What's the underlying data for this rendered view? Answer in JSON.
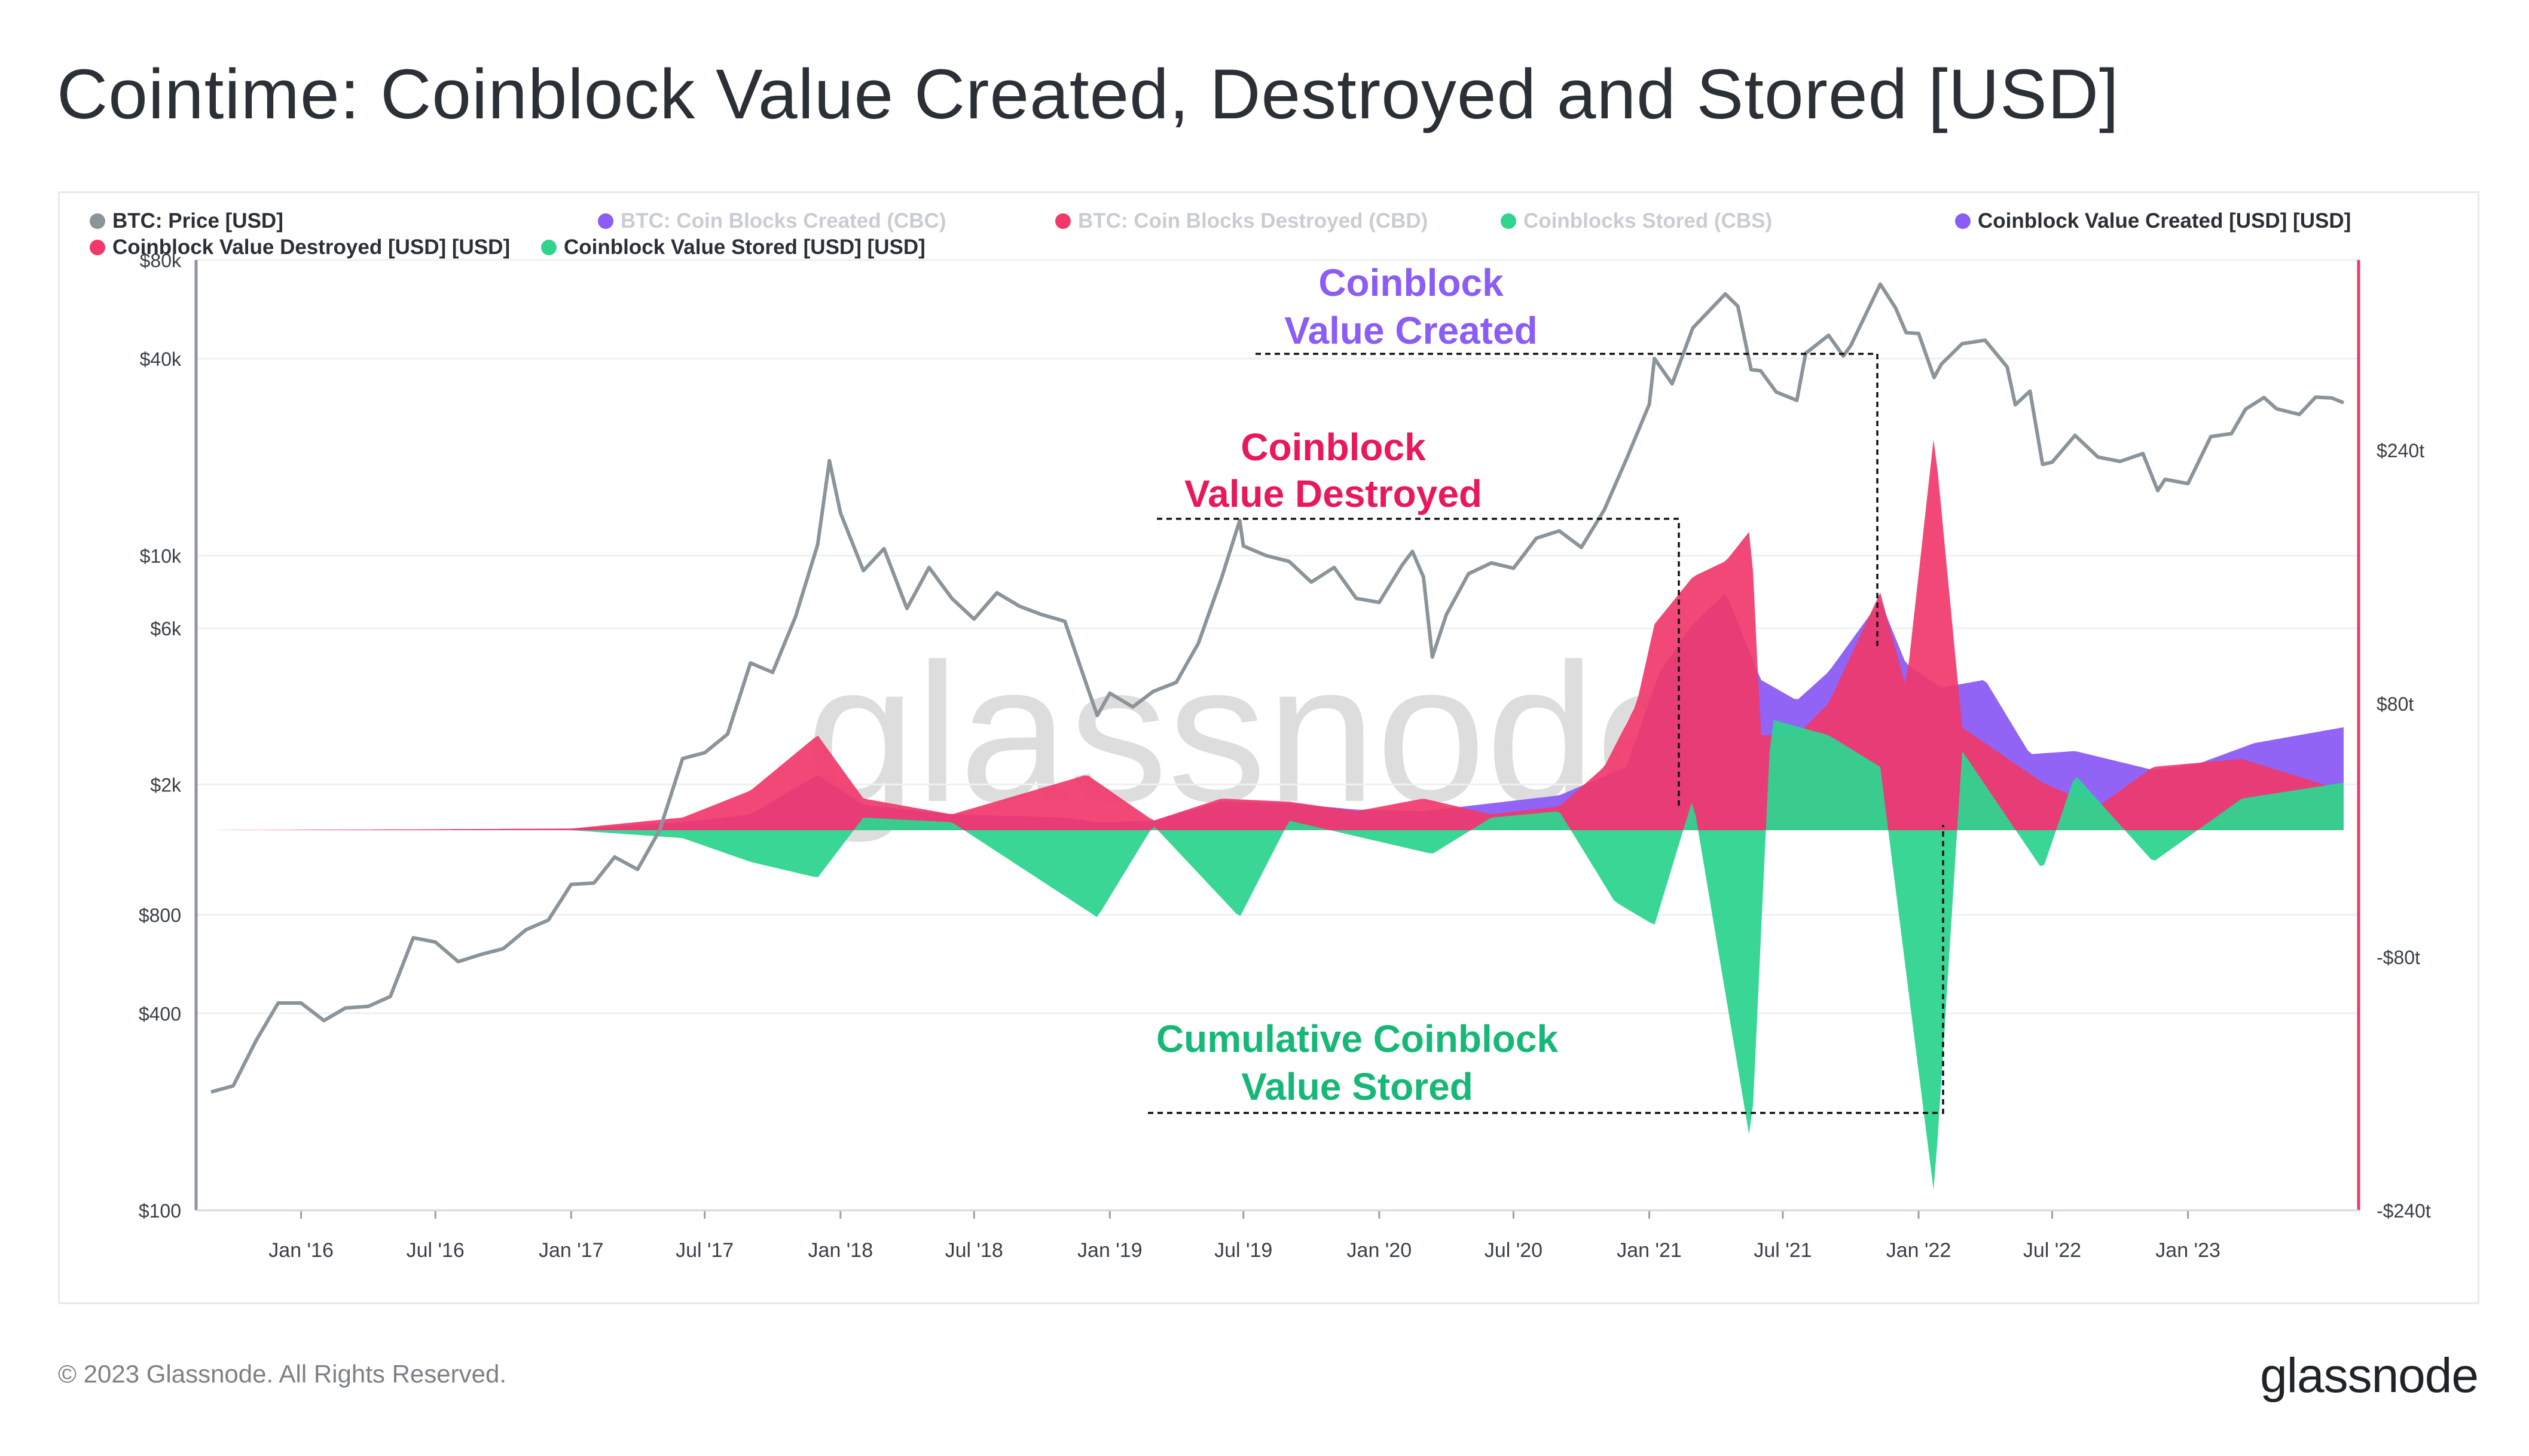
{
  "title": "Cointime: Coinblock Value Created, Destroyed and Stored [USD]",
  "footer": {
    "copyright": "© 2023 Glassnode. All Rights Reserved.",
    "logo_text": "glassnode"
  },
  "watermark": "glassnode",
  "colors": {
    "price": "#8a9499",
    "created": "#8b5cf6",
    "destroyed": "#f0386b",
    "stored": "#2fd48f",
    "axis_right": "#f0386b",
    "annotation_created": "#8b5cf6",
    "annotation_destroyed": "#e8185a",
    "annotation_stored": "#17b877"
  },
  "legend": [
    {
      "label": "BTC: Price [USD]",
      "color": "#8a9499",
      "active": true
    },
    {
      "label": "BTC: Coin Blocks Created (CBC)",
      "color": "#8b5cf6",
      "active": false
    },
    {
      "label": "BTC: Coin Blocks Destroyed (CBD)",
      "color": "#f0386b",
      "active": false
    },
    {
      "label": "Coinblocks Stored (CBS)",
      "color": "#2fd48f",
      "active": false
    },
    {
      "label": "Coinblock Value Created [USD] [USD]",
      "color": "#8b5cf6",
      "active": true
    },
    {
      "label": "Coinblock Value Destroyed [USD] [USD]",
      "color": "#f0386b",
      "active": true
    },
    {
      "label": "Coinblock Value Stored [USD] [USD]",
      "color": "#2fd48f",
      "active": true
    }
  ],
  "annotations": [
    {
      "lines": [
        "Coinblock",
        "Value Created"
      ],
      "color": "#8b5cf6"
    },
    {
      "lines": [
        "Coinblock",
        "Value Destroyed"
      ],
      "color": "#e8185a"
    },
    {
      "lines": [
        "Cumulative Coinblock",
        "Value Stored"
      ],
      "color": "#17b877"
    }
  ],
  "chart_data": {
    "type": "line",
    "x_ticks": [
      "Jan '16",
      "Jul '16",
      "Jan '17",
      "Jul '17",
      "Jan '18",
      "Jul '18",
      "Jan '19",
      "Jul '19",
      "Jan '20",
      "Jul '20",
      "Jan '21",
      "Jul '21",
      "Jan '22",
      "Jul '22",
      "Jan '23"
    ],
    "y_left": {
      "scale": "log",
      "range": [
        100,
        80000
      ],
      "ticks": [
        "$80k",
        "$40k",
        "$10k",
        "$6k",
        "$2k",
        "$800",
        "$400",
        "$100"
      ]
    },
    "y_right": {
      "scale": "linear",
      "range": [
        -240,
        360
      ],
      "unit": "t USD",
      "ticks": [
        "$240t",
        "$80t",
        "-$80t",
        "-$240t"
      ]
    },
    "grid": true,
    "legend_position": "top",
    "series": [
      {
        "name": "BTC: Price [USD]",
        "axis": "left",
        "points": [
          [
            "2015-09-01",
            230
          ],
          [
            "2015-10-01",
            240
          ],
          [
            "2015-11-01",
            330
          ],
          [
            "2015-12-01",
            430
          ],
          [
            "2016-01-01",
            430
          ],
          [
            "2016-02-01",
            380
          ],
          [
            "2016-03-01",
            415
          ],
          [
            "2016-04-01",
            420
          ],
          [
            "2016-05-01",
            450
          ],
          [
            "2016-06-01",
            680
          ],
          [
            "2016-07-01",
            660
          ],
          [
            "2016-08-01",
            575
          ],
          [
            "2016-09-01",
            605
          ],
          [
            "2016-10-01",
            630
          ],
          [
            "2016-11-01",
            720
          ],
          [
            "2016-12-01",
            770
          ],
          [
            "2017-01-01",
            990
          ],
          [
            "2017-02-01",
            1000
          ],
          [
            "2017-03-01",
            1200
          ],
          [
            "2017-04-01",
            1100
          ],
          [
            "2017-05-01",
            1450
          ],
          [
            "2017-06-01",
            2400
          ],
          [
            "2017-07-01",
            2500
          ],
          [
            "2017-08-01",
            2850
          ],
          [
            "2017-09-01",
            4700
          ],
          [
            "2017-10-01",
            4400
          ],
          [
            "2017-11-01",
            6500
          ],
          [
            "2017-12-01",
            10800
          ],
          [
            "2017-12-17",
            19500
          ],
          [
            "2018-01-01",
            13500
          ],
          [
            "2018-02-01",
            9000
          ],
          [
            "2018-03-01",
            10500
          ],
          [
            "2018-04-01",
            6900
          ],
          [
            "2018-05-01",
            9200
          ],
          [
            "2018-06-01",
            7400
          ],
          [
            "2018-07-01",
            6400
          ],
          [
            "2018-08-01",
            7700
          ],
          [
            "2018-09-01",
            7000
          ],
          [
            "2018-10-01",
            6600
          ],
          [
            "2018-11-01",
            6300
          ],
          [
            "2018-12-01",
            4000
          ],
          [
            "2018-12-15",
            3250
          ],
          [
            "2019-01-01",
            3800
          ],
          [
            "2019-02-01",
            3450
          ],
          [
            "2019-03-01",
            3850
          ],
          [
            "2019-04-01",
            4100
          ],
          [
            "2019-05-01",
            5400
          ],
          [
            "2019-06-01",
            8500
          ],
          [
            "2019-06-26",
            12800
          ],
          [
            "2019-07-01",
            10700
          ],
          [
            "2019-08-01",
            10000
          ],
          [
            "2019-09-01",
            9600
          ],
          [
            "2019-10-01",
            8300
          ],
          [
            "2019-11-01",
            9200
          ],
          [
            "2019-12-01",
            7400
          ],
          [
            "2020-01-01",
            7200
          ],
          [
            "2020-02-01",
            9350
          ],
          [
            "2020-02-15",
            10300
          ],
          [
            "2020-03-01",
            8600
          ],
          [
            "2020-03-13",
            4900
          ],
          [
            "2020-04-01",
            6600
          ],
          [
            "2020-05-01",
            8800
          ],
          [
            "2020-06-01",
            9500
          ],
          [
            "2020-07-01",
            9150
          ],
          [
            "2020-08-01",
            11300
          ],
          [
            "2020-09-01",
            11900
          ],
          [
            "2020-10-01",
            10600
          ],
          [
            "2020-11-01",
            13800
          ],
          [
            "2020-12-01",
            19700
          ],
          [
            "2021-01-01",
            29000
          ],
          [
            "2021-01-08",
            40000
          ],
          [
            "2021-02-01",
            33500
          ],
          [
            "2021-03-01",
            49600
          ],
          [
            "2021-04-14",
            63000
          ],
          [
            "2021-05-01",
            57800
          ],
          [
            "2021-05-19",
            37000
          ],
          [
            "2021-06-01",
            36700
          ],
          [
            "2021-06-22",
            31600
          ],
          [
            "2021-07-20",
            29800
          ],
          [
            "2021-08-01",
            41500
          ],
          [
            "2021-09-01",
            47100
          ],
          [
            "2021-09-21",
            40700
          ],
          [
            "2021-10-01",
            43800
          ],
          [
            "2021-11-10",
            67500
          ],
          [
            "2021-12-01",
            57000
          ],
          [
            "2021-12-15",
            48000
          ],
          [
            "2022-01-01",
            47700
          ],
          [
            "2022-01-22",
            35000
          ],
          [
            "2022-02-01",
            38500
          ],
          [
            "2022-03-01",
            44400
          ],
          [
            "2022-04-01",
            45500
          ],
          [
            "2022-05-01",
            37700
          ],
          [
            "2022-05-12",
            28900
          ],
          [
            "2022-06-01",
            31800
          ],
          [
            "2022-06-18",
            19000
          ],
          [
            "2022-07-01",
            19300
          ],
          [
            "2022-08-01",
            23300
          ],
          [
            "2022-09-01",
            20000
          ],
          [
            "2022-10-01",
            19400
          ],
          [
            "2022-11-01",
            20500
          ],
          [
            "2022-11-21",
            15800
          ],
          [
            "2022-12-01",
            17100
          ],
          [
            "2023-01-01",
            16600
          ],
          [
            "2023-02-01",
            23100
          ],
          [
            "2023-03-01",
            23600
          ],
          [
            "2023-03-20",
            28000
          ],
          [
            "2023-04-14",
            30400
          ],
          [
            "2023-05-01",
            28100
          ],
          [
            "2023-06-01",
            27000
          ],
          [
            "2023-06-23",
            30500
          ],
          [
            "2023-07-15",
            30300
          ],
          [
            "2023-07-31",
            29300
          ]
        ]
      },
      {
        "name": "Coinblock Value Created [USD] [USD]",
        "axis": "right",
        "unit": "t USD",
        "points": [
          [
            "2015-09-01",
            0
          ],
          [
            "2016-06-01",
            0.5
          ],
          [
            "2017-01-01",
            1
          ],
          [
            "2017-06-01",
            5
          ],
          [
            "2017-09-01",
            10
          ],
          [
            "2017-12-01",
            35
          ],
          [
            "2018-02-01",
            16
          ],
          [
            "2018-06-01",
            10
          ],
          [
            "2018-11-01",
            8
          ],
          [
            "2018-12-15",
            5
          ],
          [
            "2019-03-01",
            6
          ],
          [
            "2019-06-01",
            18
          ],
          [
            "2019-09-01",
            17
          ],
          [
            "2019-12-01",
            13
          ],
          [
            "2020-03-01",
            12
          ],
          [
            "2020-06-01",
            17
          ],
          [
            "2020-09-01",
            22
          ],
          [
            "2020-12-01",
            40
          ],
          [
            "2021-01-15",
            100
          ],
          [
            "2021-03-01",
            130
          ],
          [
            "2021-04-15",
            150
          ],
          [
            "2021-06-01",
            95
          ],
          [
            "2021-07-20",
            82
          ],
          [
            "2021-09-01",
            100
          ],
          [
            "2021-11-10",
            145
          ],
          [
            "2021-12-15",
            105
          ],
          [
            "2022-02-01",
            90
          ],
          [
            "2022-04-01",
            95
          ],
          [
            "2022-06-01",
            48
          ],
          [
            "2022-08-01",
            50
          ],
          [
            "2022-11-15",
            38
          ],
          [
            "2023-01-15",
            42
          ],
          [
            "2023-04-01",
            55
          ],
          [
            "2023-07-31",
            65
          ]
        ]
      },
      {
        "name": "Coinblock Value Destroyed [USD] [USD]",
        "axis": "right",
        "unit": "t USD",
        "points": [
          [
            "2015-09-01",
            0
          ],
          [
            "2016-06-01",
            0.5
          ],
          [
            "2017-01-01",
            1
          ],
          [
            "2017-06-01",
            8
          ],
          [
            "2017-09-01",
            25
          ],
          [
            "2017-12-01",
            60
          ],
          [
            "2018-02-01",
            20
          ],
          [
            "2018-06-01",
            10
          ],
          [
            "2018-12-01",
            35
          ],
          [
            "2019-03-01",
            6
          ],
          [
            "2019-06-01",
            20
          ],
          [
            "2019-09-01",
            18
          ],
          [
            "2019-12-01",
            12
          ],
          [
            "2020-03-01",
            20
          ],
          [
            "2020-06-01",
            10
          ],
          [
            "2020-09-01",
            15
          ],
          [
            "2020-11-01",
            40
          ],
          [
            "2020-12-15",
            80
          ],
          [
            "2021-01-08",
            130
          ],
          [
            "2021-03-01",
            160
          ],
          [
            "2021-04-15",
            170
          ],
          [
            "2021-05-19",
            190
          ],
          [
            "2021-06-01",
            60
          ],
          [
            "2021-07-20",
            60
          ],
          [
            "2021-09-01",
            80
          ],
          [
            "2021-11-10",
            150
          ],
          [
            "2021-12-15",
            90
          ],
          [
            "2022-01-22",
            250
          ],
          [
            "2022-03-01",
            65
          ],
          [
            "2022-06-18",
            30
          ],
          [
            "2022-09-01",
            15
          ],
          [
            "2022-11-15",
            40
          ],
          [
            "2023-03-15",
            45
          ],
          [
            "2023-07-31",
            25
          ]
        ]
      },
      {
        "name": "Coinblock Value Stored [USD] [USD]",
        "axis": "right",
        "unit": "t USD",
        "points": [
          [
            "2015-09-01",
            0
          ],
          [
            "2016-06-01",
            0
          ],
          [
            "2017-01-01",
            0
          ],
          [
            "2017-06-01",
            -5
          ],
          [
            "2017-09-01",
            -20
          ],
          [
            "2017-12-01",
            -30
          ],
          [
            "2018-02-01",
            8
          ],
          [
            "2018-06-01",
            5
          ],
          [
            "2018-12-15",
            -55
          ],
          [
            "2019-03-01",
            3
          ],
          [
            "2019-06-26",
            -55
          ],
          [
            "2019-09-01",
            6
          ],
          [
            "2020-03-13",
            -15
          ],
          [
            "2020-06-01",
            8
          ],
          [
            "2020-09-01",
            12
          ],
          [
            "2020-11-15",
            -45
          ],
          [
            "2021-01-08",
            -60
          ],
          [
            "2021-03-01",
            20
          ],
          [
            "2021-05-19",
            -200
          ],
          [
            "2021-06-15",
            70
          ],
          [
            "2021-09-01",
            60
          ],
          [
            "2021-11-10",
            40
          ],
          [
            "2022-01-22",
            -230
          ],
          [
            "2022-03-01",
            50
          ],
          [
            "2022-06-18",
            -25
          ],
          [
            "2022-08-01",
            35
          ],
          [
            "2022-11-15",
            -20
          ],
          [
            "2023-03-15",
            20
          ],
          [
            "2023-07-31",
            30
          ]
        ]
      }
    ]
  }
}
